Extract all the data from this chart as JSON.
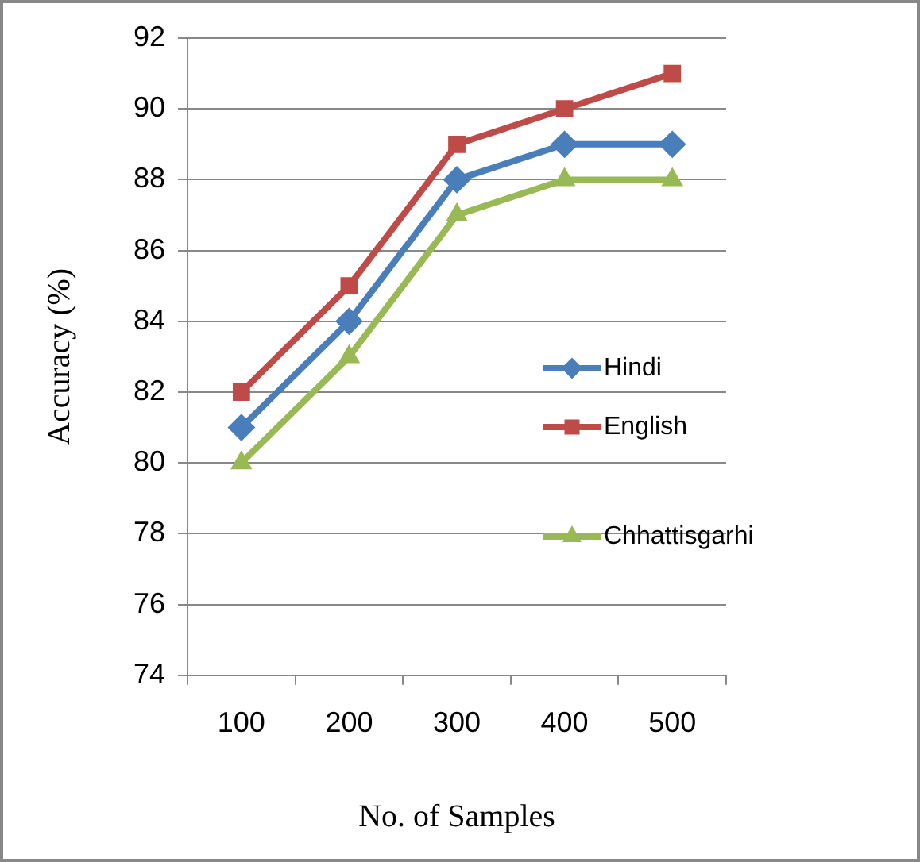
{
  "chart_data": {
    "type": "line",
    "xlabel": "No. of Samples",
    "ylabel": "Accuracy (%)",
    "categories": [
      "100",
      "200",
      "300",
      "400",
      "500"
    ],
    "series": [
      {
        "name": "Hindi",
        "color": "#4a7ebb",
        "marker": "diamond",
        "values": [
          81,
          84,
          88,
          89,
          89
        ]
      },
      {
        "name": "English",
        "color": "#be4b48",
        "marker": "square",
        "values": [
          82,
          85,
          89,
          90,
          91
        ]
      },
      {
        "name": "Chhattisgarhi",
        "color": "#98b954",
        "marker": "triangle",
        "values": [
          80,
          83,
          87,
          88,
          88
        ]
      }
    ],
    "ylim": [
      74,
      92
    ],
    "yticks": [
      74,
      76,
      78,
      80,
      82,
      84,
      86,
      88,
      90,
      92
    ],
    "grid": "y",
    "legend": "right",
    "line_style": "solid"
  }
}
